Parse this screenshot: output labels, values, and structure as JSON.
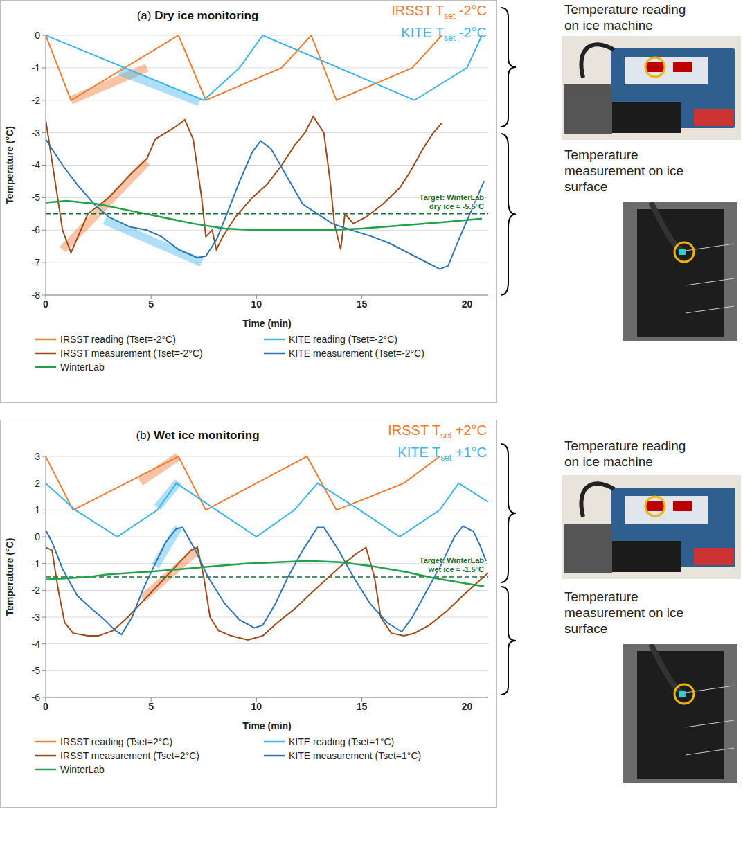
{
  "chart_data": [
    {
      "type": "line",
      "panel": "(a)",
      "title": "Dry ice monitoring",
      "x_label": "Time (min)",
      "y_label": "Temperature (°C)",
      "xlim": [
        0,
        21
      ],
      "xticks": [
        0,
        5,
        10,
        15,
        20
      ],
      "ylim": [
        -8,
        0
      ],
      "yticks": [
        -8,
        -7,
        -6,
        -5,
        -4,
        -3,
        -2,
        -1,
        0
      ],
      "grid": true,
      "legend": "bottom",
      "series": [
        {
          "name": "IRSST reading (Tset=-2°C)",
          "color": "#ed7d31",
          "x": [
            0,
            1.2,
            6.3,
            7.6,
            11.2,
            12.6,
            13.8,
            17.4,
            18.8
          ],
          "values": [
            0,
            -2,
            0,
            -2,
            -1,
            0,
            -2,
            -1,
            0
          ]
        },
        {
          "name": "KITE reading (Tset=-2°C)",
          "color": "#3cb4e6",
          "x": [
            0,
            7.5,
            9.2,
            10.3,
            17.5,
            20,
            20.7
          ],
          "values": [
            0,
            -2,
            -1,
            0,
            -2,
            -1,
            0
          ]
        },
        {
          "name": "IRSST measurement (Tset=-2°C)",
          "color": "#9c4a1a",
          "x": [
            0,
            0.8,
            1.2,
            2,
            3,
            4,
            4.8,
            5.2,
            5.7,
            6.2,
            6.6,
            7,
            7.4,
            7.6,
            7.9,
            8.1,
            8.4,
            9,
            9.8,
            10.5,
            11.2,
            11.8,
            12.3,
            12.7,
            13.2,
            13.5,
            13.7,
            14,
            14.2,
            14.6,
            15.2,
            16,
            16.8,
            17.3,
            17.9,
            18.4,
            18.8
          ],
          "values": [
            -2.6,
            -6,
            -6.7,
            -5.5,
            -5,
            -4.3,
            -3.8,
            -3.2,
            -3,
            -2.8,
            -2.6,
            -3.2,
            -5,
            -6.2,
            -6,
            -6.6,
            -6.2,
            -5.6,
            -5,
            -4.6,
            -4,
            -3.4,
            -3,
            -2.5,
            -3,
            -4.5,
            -5.8,
            -6.6,
            -5.5,
            -5.8,
            -5.6,
            -5.2,
            -4.7,
            -4.2,
            -3.5,
            -3,
            -2.7
          ]
        },
        {
          "name": "KITE measurement (Tset=-2°C)",
          "color": "#2e75b6",
          "x": [
            0,
            0.8,
            1.5,
            2.3,
            3,
            4,
            4.8,
            5.5,
            6.3,
            7.2,
            7.6,
            8.1,
            8.6,
            9.2,
            9.8,
            10.2,
            10.7,
            11.4,
            12.2,
            12.9,
            13.6,
            14.5,
            15.5,
            16.3,
            17.5,
            18.7,
            19.1,
            19.6,
            20.2,
            20.8
          ],
          "values": [
            -3.2,
            -4,
            -4.6,
            -5.2,
            -5.6,
            -5.9,
            -6,
            -6.2,
            -6.6,
            -6.85,
            -6.8,
            -6.3,
            -5.5,
            -4.5,
            -3.6,
            -3.25,
            -3.5,
            -4.3,
            -5.2,
            -5.5,
            -5.8,
            -6,
            -6.2,
            -6.4,
            -6.8,
            -7.2,
            -7.1,
            -6.3,
            -5.4,
            -4.5
          ]
        },
        {
          "name": "WinterLab",
          "color": "#22a04a",
          "x": [
            0,
            1,
            2.5,
            4,
            5.5,
            7,
            8.5,
            10,
            12,
            13.5,
            15,
            17,
            19,
            20.7
          ],
          "values": [
            -5.15,
            -5.1,
            -5.2,
            -5.4,
            -5.6,
            -5.8,
            -5.95,
            -6,
            -6,
            -6,
            -5.95,
            -5.85,
            -5.75,
            -5.65
          ]
        }
      ],
      "target": {
        "value": -5.5,
        "label": [
          "Target: WinterLab",
          "dry ice ≈ -5.5°C"
        ],
        "color": "#1e6b34",
        "line_style": "dashed"
      },
      "setpoints": [
        {
          "prefix": "IRSST T",
          "subscript": "set",
          "suffix": " -2°C",
          "color": "#ed7d31"
        },
        {
          "prefix": "KITE T",
          "subscript": "set",
          "suffix": " -2°C",
          "color": "#3cb4e6"
        }
      ],
      "highlights": [
        {
          "color": "#f08a4b",
          "x": [
            1.2,
            4.8
          ],
          "y": [
            -2,
            -1
          ]
        },
        {
          "color": "#f08a4b",
          "x": [
            0.8,
            4.8
          ],
          "y": [
            -6.6,
            -3.9
          ]
        },
        {
          "color": "#5bc0f0",
          "x": [
            3.5,
            7.3
          ],
          "y": [
            -1.1,
            -2.05
          ]
        },
        {
          "color": "#5bc0f0",
          "x": [
            2.8,
            7.4
          ],
          "y": [
            -5.7,
            -7
          ]
        }
      ],
      "side_labels": {
        "reading": [
          "Temperature reading",
          "on ice machine"
        ],
        "measurement": [
          "Temperature",
          "measurement on ice",
          "surface"
        ]
      }
    },
    {
      "type": "line",
      "panel": "(b)",
      "title": "Wet ice monitoring",
      "x_label": "Time (min)",
      "y_label": "Temperature (°C)",
      "xlim": [
        0,
        21
      ],
      "xticks": [
        0,
        5,
        10,
        15,
        20
      ],
      "ylim": [
        -6,
        3
      ],
      "yticks": [
        -6,
        -5,
        -4,
        -3,
        -2,
        -1,
        0,
        1,
        2,
        3
      ],
      "grid": true,
      "legend": "bottom",
      "series": [
        {
          "name": "IRSST reading (Tset=2°C)",
          "color": "#ed7d31",
          "x": [
            0,
            1.3,
            6.3,
            7.6,
            10,
            12.4,
            13.8,
            17,
            18.7
          ],
          "values": [
            3,
            1,
            3,
            1,
            2,
            3,
            1,
            2,
            3
          ]
        },
        {
          "name": "KITE reading (Tset=1°C)",
          "color": "#3cb4e6",
          "x": [
            0,
            1.4,
            3.4,
            5.3,
            6.2,
            8.1,
            10,
            11.8,
            12.9,
            14.9,
            16.8,
            18.7,
            19.6,
            21
          ],
          "values": [
            2,
            1,
            0,
            1,
            2,
            1,
            0,
            1,
            2,
            1,
            0,
            1,
            2,
            1.3
          ]
        },
        {
          "name": "IRSST measurement (Tset=2°C)",
          "color": "#9c4a1a",
          "x": [
            0,
            0.3,
            0.6,
            0.9,
            1.3,
            2,
            2.5,
            3.2,
            3.9,
            4.5,
            5.1,
            5.7,
            6.3,
            6.9,
            7.2,
            7.5,
            7.8,
            8.2,
            8.8,
            9.6,
            10.3,
            11,
            11.8,
            12.6,
            13.3,
            14,
            14.8,
            15.2,
            15.6,
            15.9,
            16.4,
            17,
            17.5,
            18.2,
            19,
            19.8,
            20.5,
            21
          ],
          "values": [
            -0.4,
            -0.5,
            -2,
            -3.2,
            -3.6,
            -3.7,
            -3.7,
            -3.5,
            -3,
            -2.5,
            -2,
            -1.5,
            -1,
            -0.5,
            -0.4,
            -1.5,
            -3,
            -3.5,
            -3.7,
            -3.85,
            -3.7,
            -3.2,
            -2.7,
            -2.1,
            -1.6,
            -1.1,
            -0.6,
            -0.4,
            -1.5,
            -3,
            -3.6,
            -3.7,
            -3.6,
            -3.3,
            -2.8,
            -2.2,
            -1.7,
            -1.35
          ]
        },
        {
          "name": "KITE measurement (Tset=1°C)",
          "color": "#2e75b6",
          "x": [
            0,
            0.3,
            0.8,
            1.5,
            2.2,
            2.8,
            3.3,
            3.6,
            4.1,
            4.6,
            5.2,
            5.7,
            6.2,
            6.5,
            7.1,
            7.7,
            8.5,
            9.2,
            9.9,
            10.3,
            10.9,
            11.5,
            12.2,
            12.9,
            13.2,
            13.9,
            14.6,
            15.4,
            16.2,
            16.9,
            17.4,
            18.1,
            18.8,
            19.4,
            19.8,
            20.3,
            20.6,
            20.9
          ],
          "values": [
            0.25,
            -0.2,
            -1.2,
            -2.2,
            -2.7,
            -3.1,
            -3.5,
            -3.65,
            -3,
            -2,
            -1,
            -0.2,
            0.3,
            0.35,
            -0.5,
            -1.5,
            -2.5,
            -3.1,
            -3.4,
            -3.3,
            -2.5,
            -1.5,
            -0.5,
            0.35,
            0.35,
            -0.5,
            -1.5,
            -2.5,
            -3.2,
            -3.55,
            -3,
            -2,
            -1,
            0,
            0.4,
            0.2,
            -0.3,
            -0.9
          ]
        },
        {
          "name": "WinterLab",
          "color": "#22a04a",
          "x": [
            0,
            1,
            2,
            3,
            4,
            5,
            6.5,
            8,
            9.5,
            11,
            12.5,
            14,
            15.5,
            17,
            18.5,
            20,
            20.8
          ],
          "values": [
            -1.6,
            -1.55,
            -1.5,
            -1.4,
            -1.35,
            -1.3,
            -1.2,
            -1.1,
            -1,
            -0.95,
            -0.9,
            -0.95,
            -1.1,
            -1.3,
            -1.55,
            -1.75,
            -1.85
          ]
        }
      ],
      "target": {
        "value": -1.5,
        "label": [
          "Target: WinterLab",
          "wet ice ≈ -1.5°C"
        ],
        "color": "#1e6b34",
        "line_style": "dashed"
      },
      "setpoints": [
        {
          "prefix": "IRSST T",
          "subscript": "set",
          "suffix": " +2°C",
          "color": "#ed7d31"
        },
        {
          "prefix": "KITE T",
          "subscript": "set",
          "suffix": " +1°C",
          "color": "#3cb4e6"
        }
      ],
      "highlights": [
        {
          "color": "#f08a4b",
          "x": [
            4.5,
            6.3
          ],
          "y": [
            2.05,
            3
          ]
        },
        {
          "color": "#f08a4b",
          "x": [
            4.6,
            7.2
          ],
          "y": [
            -2.3,
            -0.5
          ]
        },
        {
          "color": "#5bc0f0",
          "x": [
            5.3,
            6.3
          ],
          "y": [
            1.1,
            2.05
          ]
        },
        {
          "color": "#5bc0f0",
          "x": [
            5.2,
            6.3
          ],
          "y": [
            -1.1,
            0.35
          ]
        }
      ],
      "side_labels": {
        "reading": [
          "Temperature reading",
          "on ice machine"
        ],
        "measurement": [
          "Temperature",
          "measurement on ice",
          "surface"
        ]
      }
    }
  ]
}
